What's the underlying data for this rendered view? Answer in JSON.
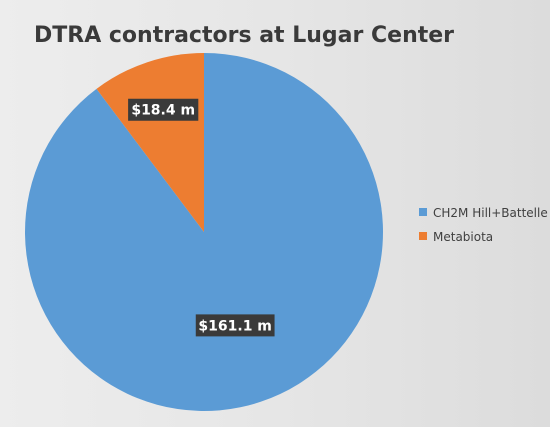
{
  "chart_data": {
    "type": "pie",
    "title": "DTRA contractors at Lugar Center",
    "legend_position": "right",
    "series": [
      {
        "name": "",
        "values": [
          161.1,
          18.4
        ]
      }
    ],
    "categories": [
      "CH2M Hill+Battelle",
      "Metabiota"
    ],
    "slices": [
      {
        "label": "CH2M Hill+Battelle",
        "value": 161.1,
        "data_label": "$161.1 m",
        "color": "#5b9bd5"
      },
      {
        "label": "Metabiota",
        "value": 18.4,
        "data_label": "$18.4 m",
        "color": "#ed7d31"
      }
    ]
  }
}
